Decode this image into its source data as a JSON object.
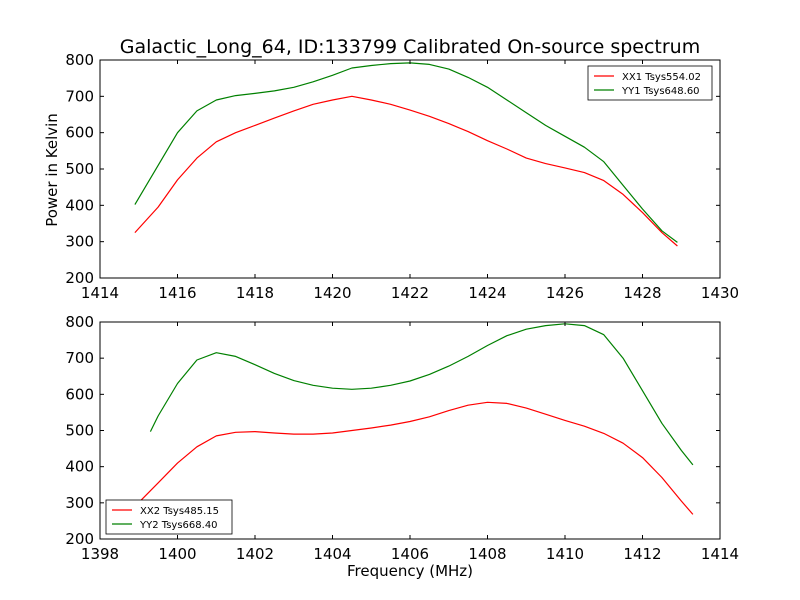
{
  "chart_data": [
    {
      "type": "line",
      "title": "Galactic_Long_64, ID:133799 Calibrated On-source spectrum",
      "xlabel": "",
      "ylabel": "Power in Kelvin",
      "xlim": [
        1414,
        1430
      ],
      "ylim": [
        200,
        800
      ],
      "xticks": [
        "1414",
        "1416",
        "1418",
        "1420",
        "1422",
        "1424",
        "1426",
        "1428",
        "1430"
      ],
      "yticks": [
        "200",
        "300",
        "400",
        "500",
        "600",
        "700",
        "800"
      ],
      "grid": false,
      "legend_position": "top-right",
      "series": [
        {
          "name": "XX1 Tsys554.02",
          "color": "#ff0000",
          "x": [
            1414.9,
            1415.5,
            1416.0,
            1416.5,
            1417.0,
            1417.5,
            1418.0,
            1418.5,
            1419.0,
            1419.5,
            1420.0,
            1420.5,
            1421.0,
            1421.5,
            1422.0,
            1422.5,
            1423.0,
            1423.5,
            1424.0,
            1424.5,
            1425.0,
            1425.5,
            1426.0,
            1426.5,
            1427.0,
            1427.5,
            1428.0,
            1428.5,
            1428.9
          ],
          "values": [
            325,
            395,
            470,
            530,
            575,
            600,
            620,
            640,
            660,
            678,
            690,
            700,
            690,
            678,
            662,
            645,
            625,
            603,
            578,
            555,
            530,
            515,
            503,
            490,
            468,
            430,
            380,
            325,
            288
          ]
        },
        {
          "name": "YY1 Tsys648.60",
          "color": "#008000",
          "x": [
            1414.9,
            1415.5,
            1416.0,
            1416.5,
            1417.0,
            1417.5,
            1418.0,
            1418.5,
            1419.0,
            1419.5,
            1420.0,
            1420.5,
            1421.0,
            1421.5,
            1422.0,
            1422.5,
            1423.0,
            1423.5,
            1424.0,
            1424.5,
            1425.0,
            1425.5,
            1426.0,
            1426.5,
            1427.0,
            1427.5,
            1428.0,
            1428.5,
            1428.9
          ],
          "values": [
            402,
            510,
            600,
            660,
            690,
            702,
            708,
            715,
            725,
            740,
            758,
            778,
            785,
            790,
            792,
            788,
            775,
            752,
            725,
            690,
            655,
            620,
            590,
            560,
            520,
            455,
            390,
            330,
            298
          ]
        }
      ]
    },
    {
      "type": "line",
      "title": "",
      "xlabel": "Frequency (MHz)",
      "ylabel": "",
      "xlim": [
        1398,
        1414
      ],
      "ylim": [
        200,
        800
      ],
      "xticks": [
        "1398",
        "1400",
        "1402",
        "1404",
        "1406",
        "1408",
        "1410",
        "1412",
        "1414"
      ],
      "yticks": [
        "200",
        "300",
        "400",
        "500",
        "600",
        "700",
        "800"
      ],
      "grid": false,
      "legend_position": "bottom-left",
      "series": [
        {
          "name": "XX2 Tsys485.15",
          "color": "#ff0000",
          "x": [
            1398.9,
            1399.5,
            1400.0,
            1400.5,
            1401.0,
            1401.5,
            1402.0,
            1402.5,
            1403.0,
            1403.5,
            1404.0,
            1404.5,
            1405.0,
            1405.5,
            1406.0,
            1406.5,
            1407.0,
            1407.5,
            1408.0,
            1408.5,
            1409.0,
            1409.5,
            1410.0,
            1410.5,
            1411.0,
            1411.5,
            1412.0,
            1412.5,
            1413.0,
            1413.3
          ],
          "values": [
            290,
            355,
            410,
            455,
            485,
            495,
            497,
            493,
            490,
            490,
            493,
            500,
            507,
            515,
            525,
            538,
            555,
            570,
            578,
            575,
            562,
            545,
            528,
            512,
            492,
            465,
            425,
            370,
            305,
            268
          ]
        },
        {
          "name": "YY2 Tsys668.40",
          "color": "#008000",
          "x": [
            1399.3,
            1399.5,
            1400.0,
            1400.5,
            1401.0,
            1401.5,
            1402.0,
            1402.5,
            1403.0,
            1403.5,
            1404.0,
            1404.5,
            1405.0,
            1405.5,
            1406.0,
            1406.5,
            1407.0,
            1407.5,
            1408.0,
            1408.5,
            1409.0,
            1409.5,
            1410.0,
            1410.5,
            1411.0,
            1411.5,
            1412.0,
            1412.5,
            1413.0,
            1413.3
          ],
          "values": [
            497,
            540,
            630,
            695,
            715,
            705,
            682,
            658,
            638,
            625,
            617,
            614,
            617,
            625,
            637,
            655,
            678,
            705,
            735,
            762,
            780,
            790,
            795,
            790,
            765,
            700,
            610,
            520,
            445,
            405
          ]
        }
      ]
    }
  ]
}
